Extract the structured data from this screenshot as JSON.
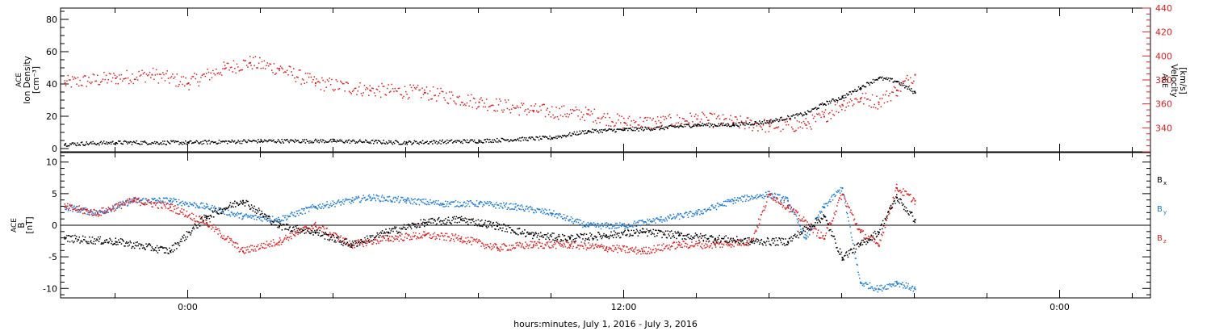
{
  "chart_data": [
    {
      "type": "scatter",
      "panel": "top",
      "ylabel_left": [
        "ACE",
        "Ion Density",
        "[cm⁻³]"
      ],
      "ylabel_right": [
        "ACE",
        "Velocity",
        "[km/s]"
      ],
      "xlim_hours": [
        -3.5,
        26.5
      ],
      "ylim_left": [
        -2,
        87
      ],
      "yticks_left": [
        0,
        20,
        40,
        60,
        80
      ],
      "ylim_right": [
        320,
        440
      ],
      "yticks_right": [
        340,
        360,
        380,
        400,
        420,
        440
      ],
      "series": [
        {
          "axis": "left",
          "color": "#000000",
          "x": [
            -3.4,
            -2.0,
            0.0,
            2.0,
            4.0,
            6.0,
            8.0,
            10.0,
            11.0,
            12.0,
            13.0,
            14.0,
            15.0,
            16.0,
            17.0,
            17.5,
            18.0,
            18.5,
            19.0,
            19.5,
            20.0
          ],
          "y": [
            3,
            4,
            4,
            5,
            5,
            4,
            5,
            7,
            11,
            12,
            13,
            15,
            15,
            17,
            22,
            28,
            32,
            38,
            44,
            42,
            35
          ]
        },
        {
          "axis": "right",
          "color": "#e02020",
          "x": [
            -3.4,
            -2.0,
            -1.0,
            0.0,
            1.0,
            1.7,
            2.5,
            3.5,
            5.0,
            6.5,
            8.0,
            9.5,
            11.0,
            12.0,
            13.0,
            14.0,
            15.0,
            16.0,
            17.0,
            17.5,
            18.0,
            18.5,
            19.0,
            19.5,
            20.0
          ],
          "y": [
            378,
            382,
            385,
            378,
            390,
            395,
            390,
            378,
            372,
            370,
            362,
            355,
            352,
            345,
            345,
            348,
            345,
            342,
            343,
            350,
            360,
            365,
            362,
            372,
            385
          ]
        }
      ]
    },
    {
      "type": "scatter",
      "panel": "bottom",
      "ylabel_left": [
        "ACE",
        "B",
        "[nT]"
      ],
      "xlabel": "hours:minutes, July  1, 2016 - July  3, 2016",
      "xticks": [
        "0:00",
        "12:00",
        "0:00"
      ],
      "xtick_hours": [
        0,
        12,
        24
      ],
      "xlim_hours": [
        -3.5,
        26.5
      ],
      "ylim": [
        -11.5,
        11.5
      ],
      "yticks": [
        -10,
        -5,
        0,
        5,
        10
      ],
      "zero_line": true,
      "legend": {
        "placement": "right",
        "entries": [
          "B",
          "B",
          "B"
        ],
        "subscripts": [
          "x",
          "y",
          "z"
        ]
      },
      "series": [
        {
          "component": "x",
          "color": "#000000",
          "x": [
            -3.4,
            -2.0,
            -0.5,
            0.5,
            1.5,
            2.5,
            3.5,
            4.5,
            5.5,
            6.5,
            7.5,
            8.5,
            9.5,
            10.5,
            11.5,
            12.5,
            13.5,
            14.5,
            15.5,
            16.5,
            17.5,
            18.0,
            18.5,
            19.0,
            19.5,
            20.0
          ],
          "y": [
            -2,
            -2.5,
            -4,
            1.5,
            4,
            0,
            -1,
            -3,
            -1,
            0.5,
            1,
            0,
            -1.5,
            -2,
            -1.5,
            -1,
            -1.5,
            -2,
            -2.5,
            -2.5,
            1.5,
            -5,
            -3,
            -1,
            4.5,
            1
          ]
        },
        {
          "component": "y",
          "color": "#1a7ad9",
          "x": [
            -3.4,
            -2.5,
            -1.5,
            -0.5,
            0.5,
            1.5,
            2.5,
            3.5,
            4.5,
            5.0,
            6.0,
            7.0,
            8.0,
            9.0,
            10.0,
            11.0,
            12.0,
            13.0,
            14.0,
            15.0,
            16.0,
            16.5,
            17.0,
            17.5,
            18.0,
            18.5,
            19.0,
            19.5,
            20.0
          ],
          "y": [
            3,
            2,
            4,
            4,
            3,
            1.5,
            1,
            3,
            4,
            4.5,
            4,
            3.5,
            3.5,
            3,
            2,
            0,
            0,
            1,
            2,
            4,
            5,
            4,
            -2,
            3,
            6,
            -9,
            -10,
            -9,
            -10
          ]
        },
        {
          "component": "z",
          "color": "#e02020",
          "x": [
            -3.4,
            -2.5,
            -1.5,
            -0.5,
            0.5,
            1.5,
            2.5,
            3.0,
            3.5,
            4.5,
            5.5,
            6.5,
            7.5,
            8.5,
            9.5,
            10.5,
            11.5,
            12.5,
            13.5,
            14.5,
            15.5,
            16.0,
            16.5,
            17.5,
            18.0,
            18.5,
            19.0,
            19.5,
            20.0
          ],
          "y": [
            3,
            2,
            4,
            3,
            0.5,
            -4,
            -2.5,
            -1,
            0,
            -3,
            -2,
            -1.5,
            -2,
            -3.5,
            -3,
            -3,
            -3.5,
            -4,
            -3,
            -3,
            -2.5,
            5,
            3,
            -2,
            5,
            -1,
            -3,
            6,
            4
          ]
        }
      ]
    }
  ]
}
